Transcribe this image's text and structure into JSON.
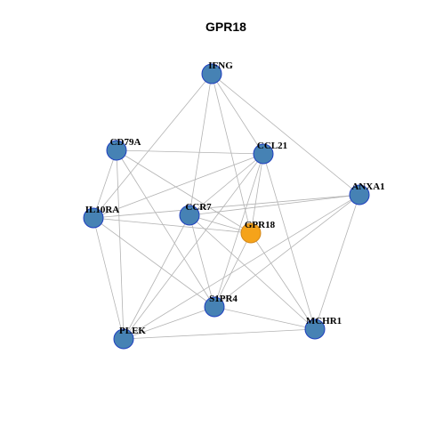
{
  "title": "GPR18",
  "nodes": [
    {
      "label": "IFNG"
    },
    {
      "label": "CD79A"
    },
    {
      "label": "CCL21"
    },
    {
      "label": "ANXA1"
    },
    {
      "label": "IL10RA"
    },
    {
      "label": "CCR7"
    },
    {
      "label": "GPR18"
    },
    {
      "label": "S1PR4"
    },
    {
      "label": "MCHR1"
    },
    {
      "label": "PLEK"
    }
  ]
}
